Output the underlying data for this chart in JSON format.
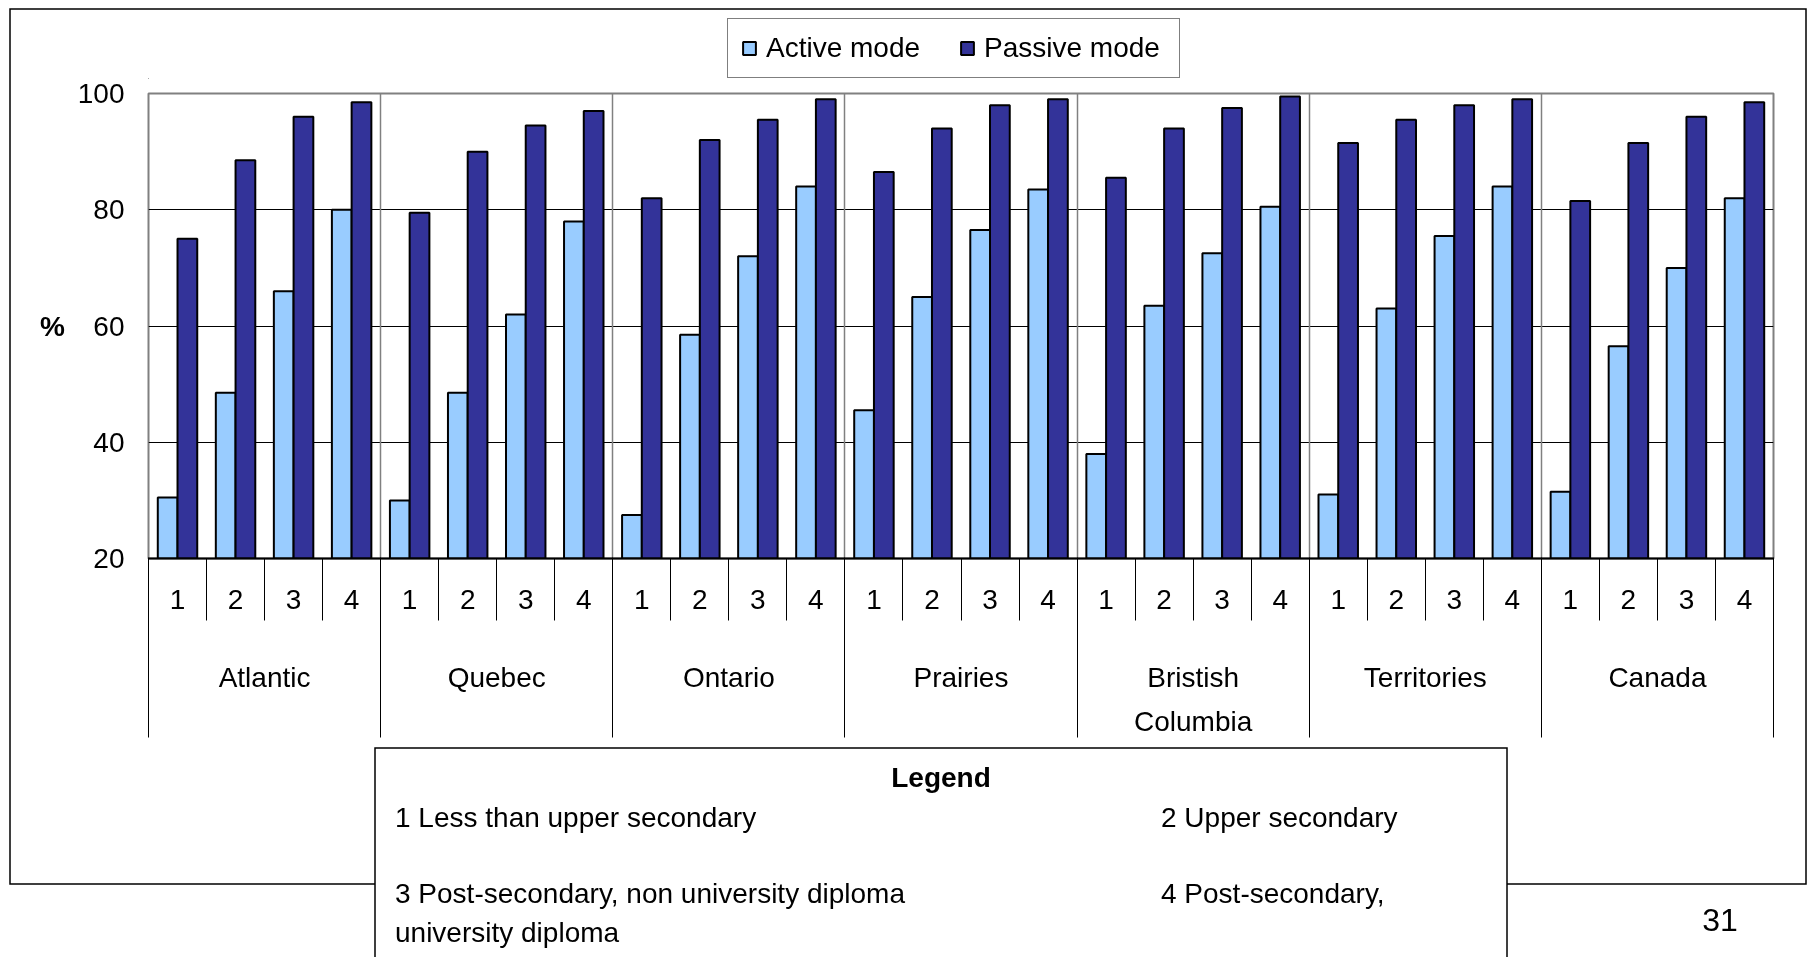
{
  "chart_data": {
    "type": "bar",
    "ylabel": "%",
    "categories": [
      "1",
      "2",
      "3",
      "4",
      "1",
      "2",
      "3",
      "4",
      "1",
      "2",
      "3",
      "4",
      "1",
      "2",
      "3",
      "4",
      "1",
      "2",
      "3",
      "4",
      "1",
      "2",
      "3",
      "4",
      "1",
      "2",
      "3",
      "4"
    ],
    "series": [
      {
        "name": "Active mode",
        "color": "#99ccff",
        "values": [
          30.5,
          48.5,
          66,
          80,
          30,
          48.5,
          62,
          78,
          27.5,
          58.5,
          72,
          84,
          45.5,
          65,
          76.5,
          83.5,
          38,
          63.5,
          72.5,
          80.5,
          31,
          63,
          75.5,
          84,
          31.5,
          56.5,
          70,
          82
        ]
      },
      {
        "name": "Passive mode",
        "color": "#333399",
        "values": [
          75,
          88.5,
          96,
          98.5,
          79.5,
          90,
          94.5,
          97,
          82,
          92,
          95.5,
          99,
          86.5,
          94,
          98,
          99,
          85.5,
          94,
          97.5,
          99.5,
          91.5,
          95.5,
          98,
          99,
          81.5,
          91.5,
          96,
          98.5
        ]
      }
    ],
    "ylim": [
      20,
      100
    ],
    "yticks": [
      20,
      40,
      60,
      80,
      100
    ],
    "grid": true,
    "legend": "top",
    "annotations": [
      "Atlantic",
      "Quebec",
      "Ontario",
      "Prairies",
      "Bristish Columbia",
      "Territories",
      "Canada",
      "Legend",
      "1 Less than upper secondary",
      "2 Upper secondary",
      "3 Post-secondary, non university diploma",
      "4 Post-secondary,",
      "university diploma",
      "31"
    ]
  }
}
